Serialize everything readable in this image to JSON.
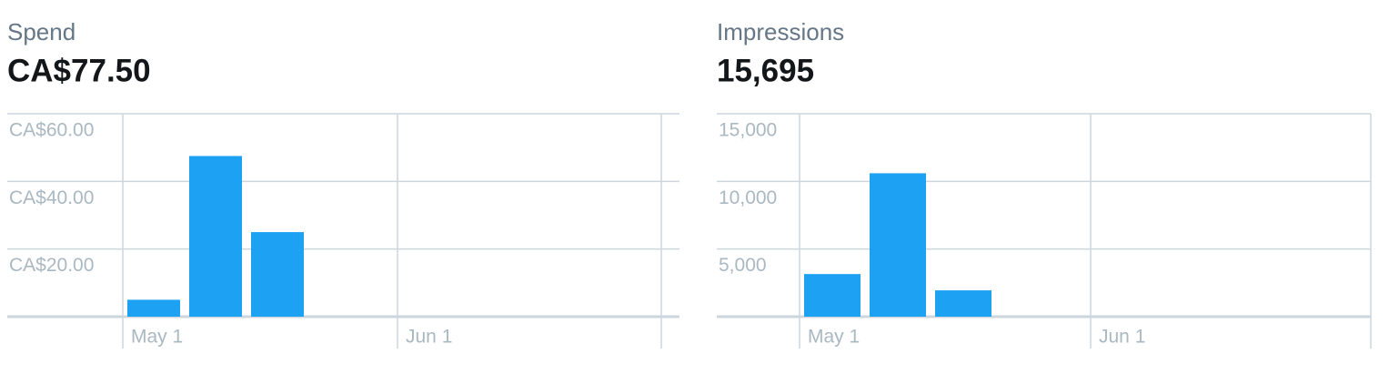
{
  "chart_data": [
    {
      "type": "bar",
      "title": "Spend",
      "headline": "CA$77.50",
      "categories": [
        null,
        null,
        null
      ],
      "values": [
        5,
        47.5,
        25
      ],
      "color": "#1da1f2",
      "ylim": [
        0,
        60
      ],
      "yticks": [
        0,
        {
          "value": 20,
          "label": "CA$20.00"
        },
        {
          "value": 40,
          "label": "CA$40.00"
        },
        {
          "value": 60,
          "label": "CA$60.00"
        }
      ],
      "xtick_labels": [
        "May 1",
        "Jun 1"
      ],
      "grid": true
    },
    {
      "type": "bar",
      "title": "Impressions",
      "headline": "15,695",
      "categories": [
        null,
        null,
        null
      ],
      "values": [
        3150,
        10600,
        1945
      ],
      "color": "#1da1f2",
      "ylim": [
        0,
        15000
      ],
      "yticks": [
        0,
        {
          "value": 5000,
          "label": "5,000"
        },
        {
          "value": 10000,
          "label": "10,000"
        },
        {
          "value": 15000,
          "label": "15,000"
        }
      ],
      "xtick_labels": [
        "May 1",
        "Jun 1"
      ],
      "grid": true
    }
  ]
}
